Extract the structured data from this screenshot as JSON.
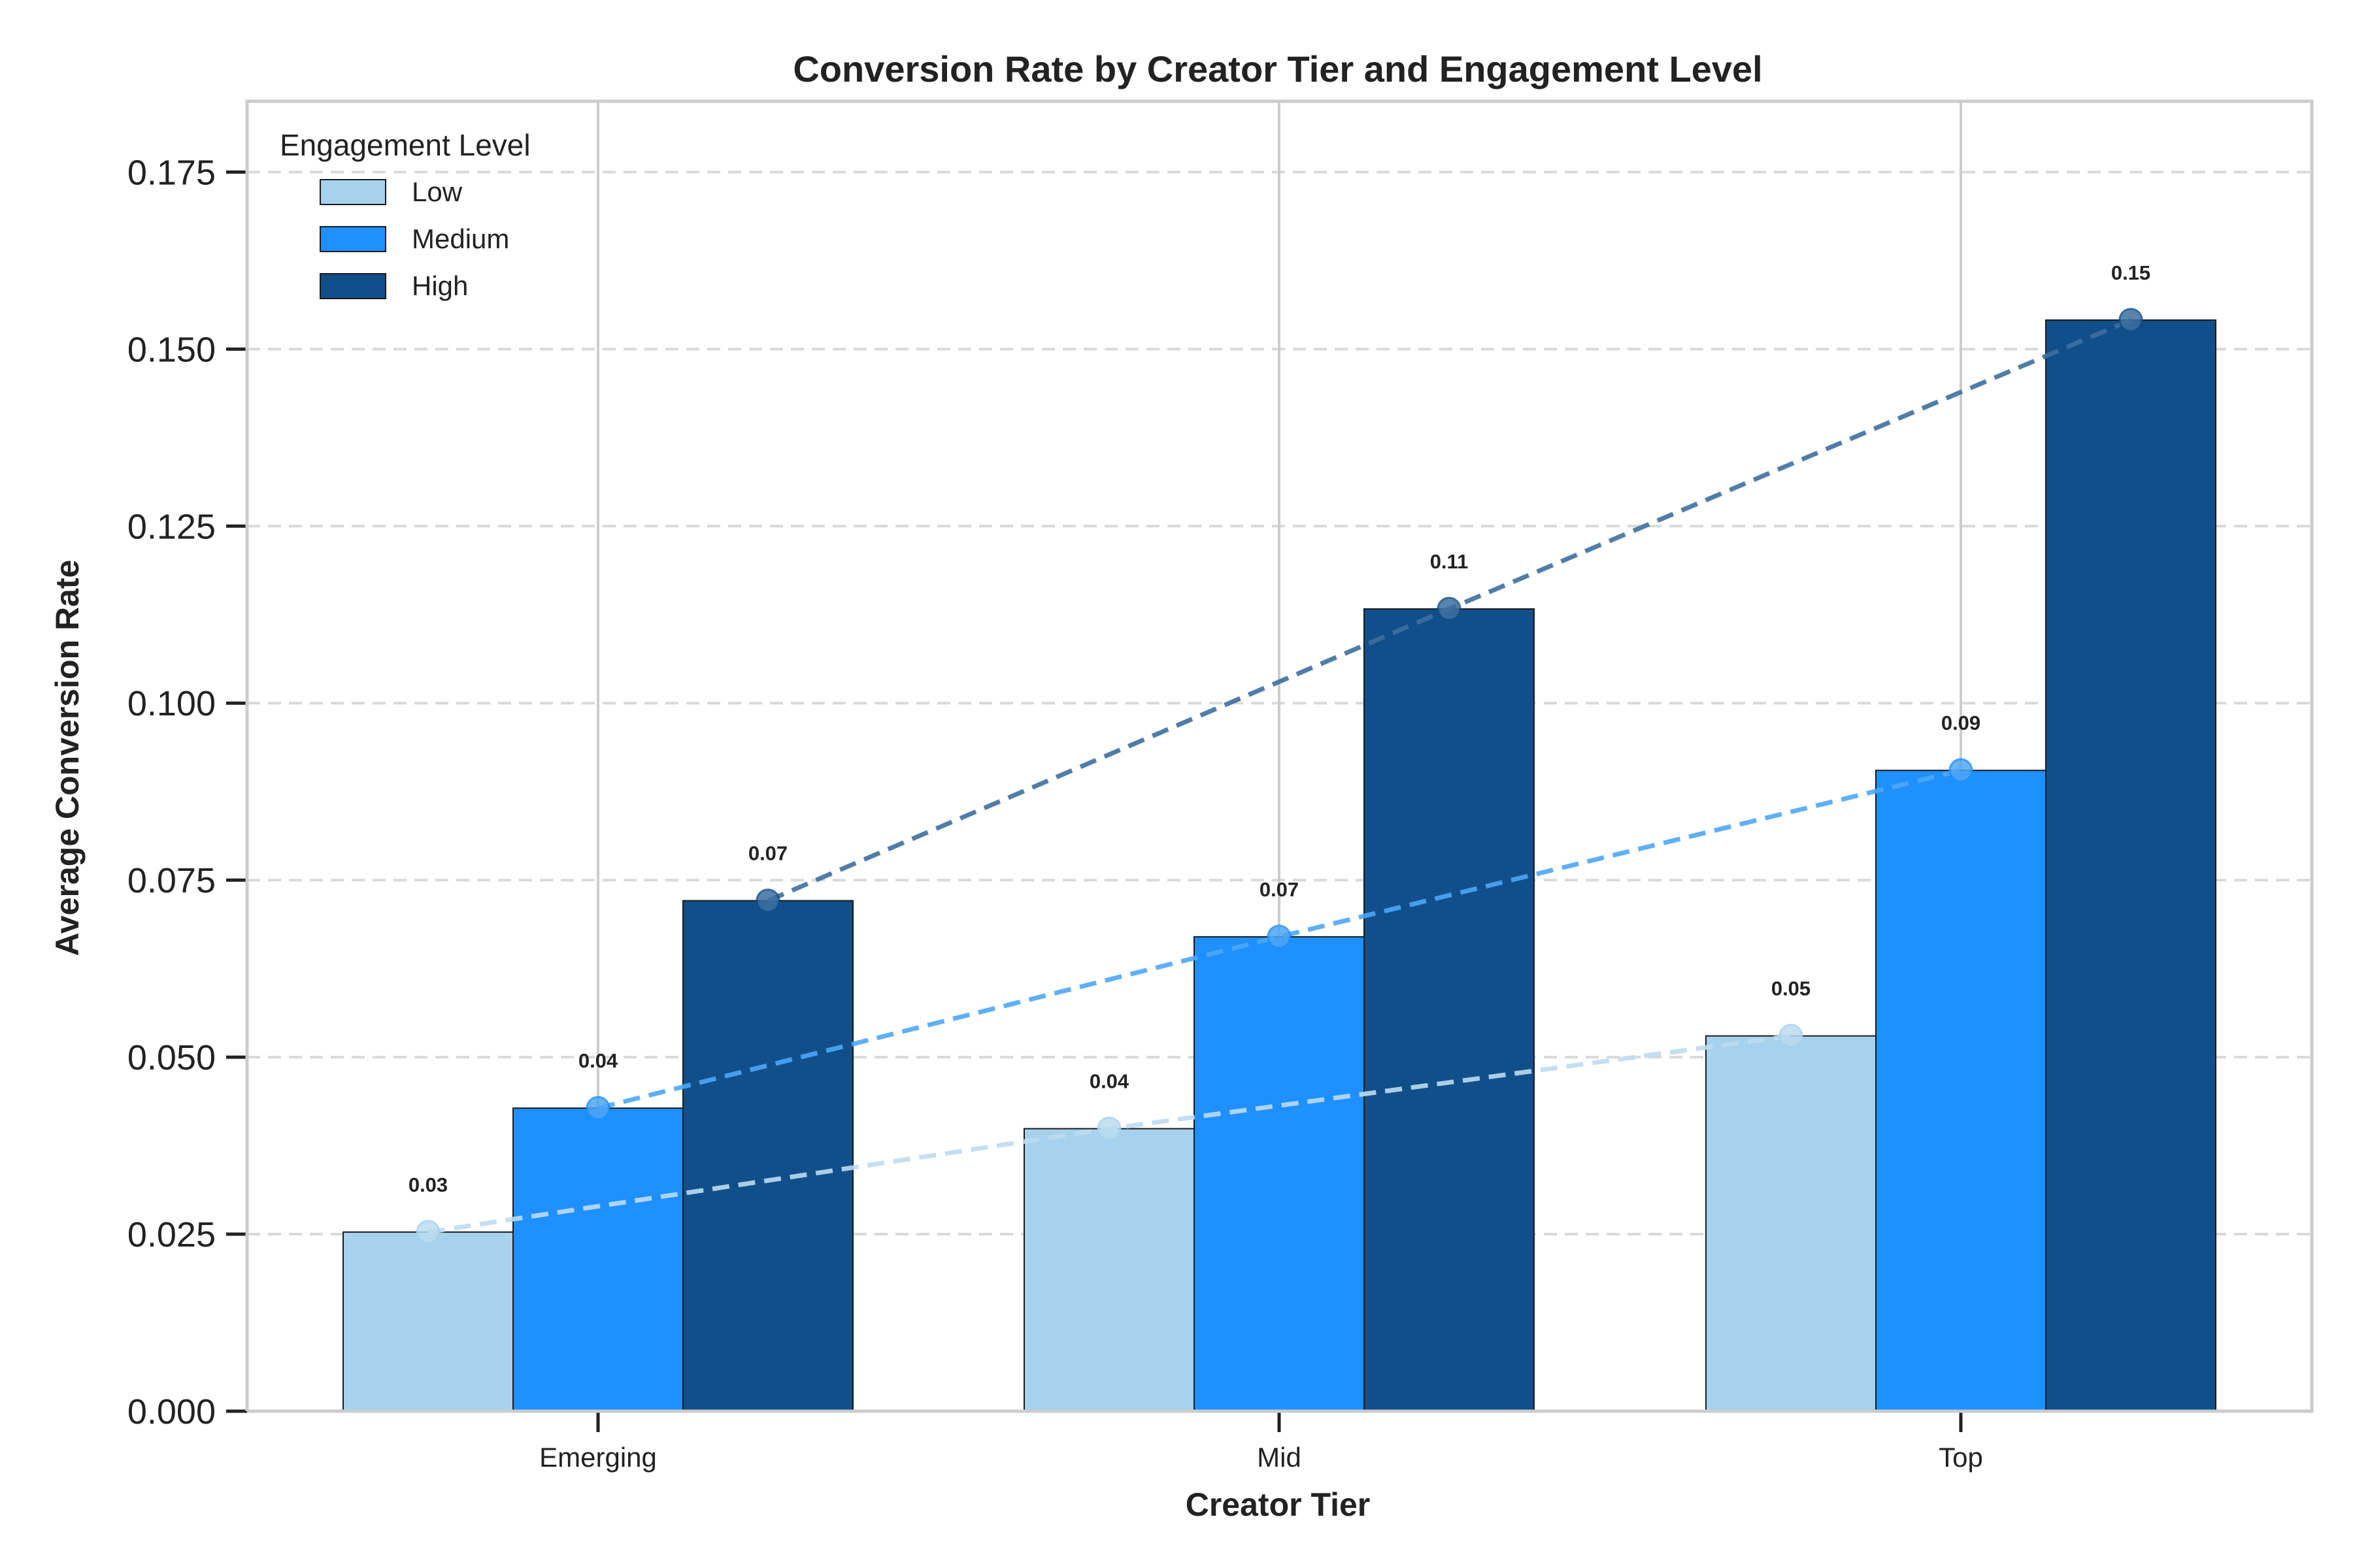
{
  "chart_data": {
    "type": "bar",
    "title": "Conversion Rate by Creator Tier and Engagement Level",
    "xlabel": "Creator Tier",
    "ylabel": "Average Conversion Rate",
    "categories": [
      "Emerging",
      "Mid",
      "Top"
    ],
    "series": [
      {
        "name": "Low",
        "values": [
          0.0253,
          0.0399,
          0.053
        ],
        "labels": [
          "0.03",
          "0.04",
          "0.05"
        ],
        "color": "#a6d2ed",
        "line_color": "#bcdcf0"
      },
      {
        "name": "Medium",
        "values": [
          0.0428,
          0.067,
          0.0905
        ],
        "labels": [
          "0.04",
          "0.07",
          "0.09"
        ],
        "color": "#1e90ff",
        "line_color": "#4da6f5"
      },
      {
        "name": "High",
        "values": [
          0.0721,
          0.1133,
          0.1541
        ],
        "labels": [
          "0.07",
          "0.11",
          "0.15"
        ],
        "color": "#114f8b",
        "line_color": "#3d6f9f"
      }
    ],
    "ylim": [
      0,
      0.185
    ],
    "yticks": [
      "0.000",
      "0.025",
      "0.050",
      "0.075",
      "0.100",
      "0.125",
      "0.150",
      "0.175"
    ],
    "legend": {
      "title": "Engagement Level",
      "placement": "top-left"
    },
    "grid": true,
    "trend_lines": "dashed, one per series"
  }
}
